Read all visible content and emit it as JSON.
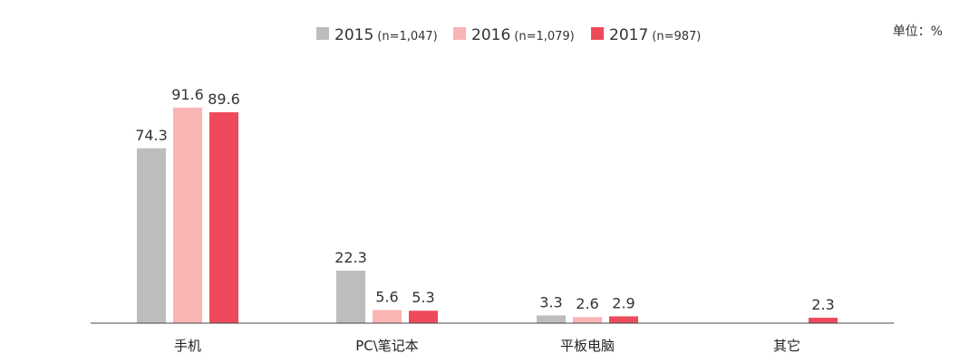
{
  "chart_data": {
    "type": "bar",
    "unit_label": "单位：%",
    "categories": [
      "手机",
      "PC\\笔记本",
      "平板电脑",
      "其它"
    ],
    "series": [
      {
        "name": "2015",
        "n_label": "(n=1,047)",
        "color": "#bdbdbd",
        "values": [
          74.3,
          22.3,
          3.3,
          null
        ]
      },
      {
        "name": "2016",
        "n_label": "(n=1,079)",
        "color": "#f9b4b4",
        "values": [
          91.6,
          5.6,
          2.6,
          null
        ]
      },
      {
        "name": "2017",
        "n_label": "(n=987)",
        "color": "#ee4a5c",
        "values": [
          89.6,
          5.3,
          2.9,
          2.3
        ]
      }
    ],
    "ylim": [
      0,
      100
    ],
    "grid": false,
    "legend_position": "top-center"
  }
}
